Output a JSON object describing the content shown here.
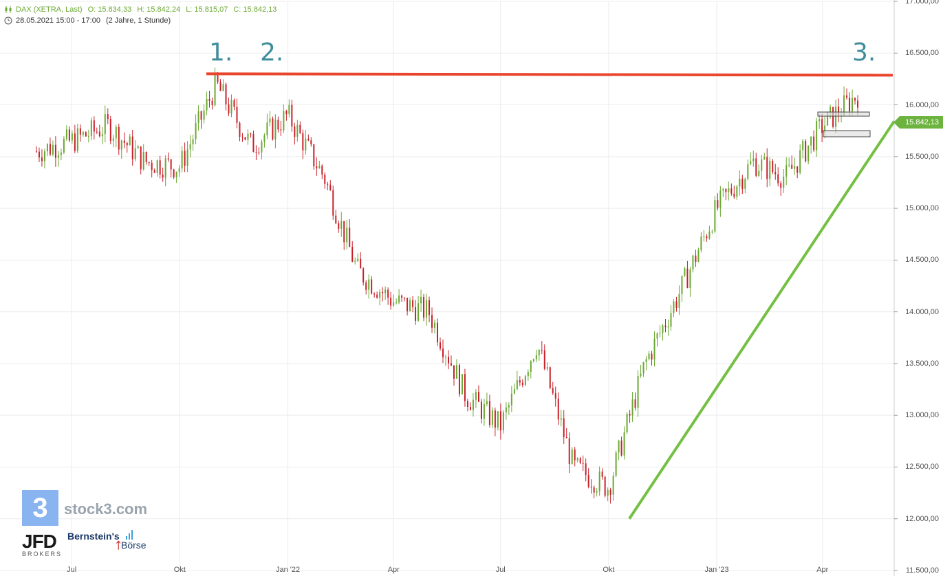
{
  "header": {
    "instrument": "DAX (XETRA, Last)",
    "open": "O: 15.834,33",
    "high": "H: 15.842,24",
    "low": "L: 15.815,07",
    "close": "C: 15.842,13",
    "date": "28.05.2021 15:00 - 17:00",
    "range": "(2 Jahre, 1 Stunde)"
  },
  "annotations": {
    "label1": "1.",
    "label2": "2.",
    "label3": "3."
  },
  "price_badge": "15.842,13",
  "logos": {
    "stock3_glyph": "3",
    "stock3_text": "stock3.com",
    "jfd": "JFD",
    "jfd_sub": "BROKERS",
    "bernstein1": "Bernstein's",
    "bernstein2": "Börse"
  },
  "colors": {
    "up": "#6aa832",
    "down": "#c8202a",
    "resistance": "#e8452c",
    "trendline": "#74c043",
    "label": "#3f8d9c"
  },
  "chart_data": {
    "type": "candlestick",
    "x_ticks": [
      "Jul",
      "Okt",
      "Jan '22",
      "Apr",
      "Jul",
      "Okt",
      "Jan '23",
      "Apr"
    ],
    "y_ticks": [
      "11.500,00",
      "12.000,00",
      "12.500,00",
      "13.000,00",
      "13.500,00",
      "14.000,00",
      "14.500,00",
      "15.000,00",
      "15.500,00",
      "16.000,00",
      "16.500,00",
      "17.000,00"
    ],
    "ylim": [
      11500,
      17000
    ],
    "x": [
      "2021-06",
      "2021-07",
      "2021-08",
      "2021-09",
      "2021-10",
      "2021-11",
      "2021-12",
      "2022-01",
      "2022-02",
      "2022-03",
      "2022-04",
      "2022-05",
      "2022-06",
      "2022-07",
      "2022-08",
      "2022-09",
      "2022-10",
      "2022-11",
      "2022-12",
      "2023-01",
      "2023-02",
      "2023-03",
      "2023-04",
      "2023-05"
    ],
    "series": [
      {
        "values": [
          15550,
          15650,
          15800,
          15450,
          15400,
          16200,
          15600,
          15900,
          15300,
          14400,
          14100,
          14000,
          13200,
          12900,
          13700,
          12500,
          12300,
          13500,
          14200,
          15000,
          15450,
          15300,
          15800,
          16100
        ]
      }
    ],
    "resistance": 16300,
    "trendline": {
      "from": [
        "2022-10",
        12000
      ],
      "to": [
        "2023-05",
        15842
      ]
    },
    "last_price": 15842.13
  }
}
